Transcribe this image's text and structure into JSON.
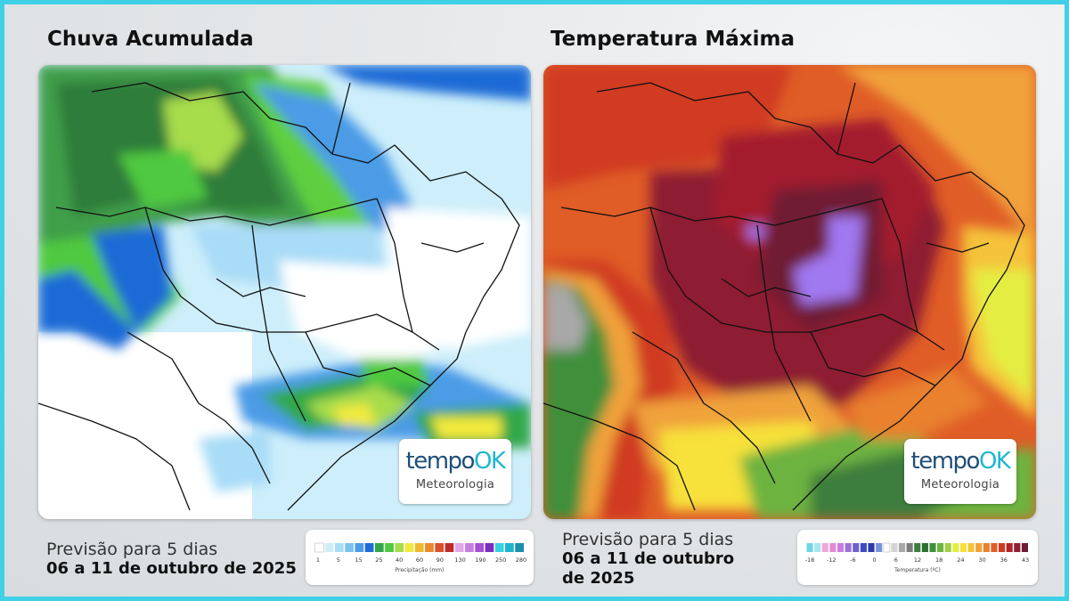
{
  "rain": {
    "title": "Chuva Acumulada",
    "legend_ticks": [
      "1",
      "5",
      "15",
      "25",
      "40",
      "60",
      "90",
      "130",
      "190",
      "250",
      "280"
    ],
    "legend_title": "Precipitação (mm)",
    "legend_colors": [
      "#ffffff",
      "#cfeefa",
      "#a9dcf7",
      "#7cc2ef",
      "#4c9be6",
      "#1f6bd6",
      "#30a84a",
      "#4fc93f",
      "#a7dc4b",
      "#f2ea3d",
      "#f0b82f",
      "#e98a2c",
      "#d95128",
      "#bf2b2c",
      "#e0a8e6",
      "#c77ee0",
      "#a54fd5",
      "#7a2cc4",
      "#38d2e2",
      "#1fb4cf",
      "#1a8fb0"
    ]
  },
  "temp": {
    "title": "Temperatura Máxima",
    "legend_ticks": [
      "-18",
      "-12",
      "-6",
      "0",
      "6",
      "12",
      "18",
      "24",
      "30",
      "36",
      "43"
    ],
    "legend_title": "Temperatura (ºC)",
    "legend_colors": [
      "#6fd6e8",
      "#a7e6f0",
      "#f0a7d9",
      "#e48ad1",
      "#c77ee0",
      "#9a73d8",
      "#6b62cf",
      "#3f4cc0",
      "#2d3aa8",
      "#7894d8",
      "#ffffff",
      "#d4d4d4",
      "#a8a8a8",
      "#7c7c7c",
      "#3e7d3e",
      "#2f6e31",
      "#3f8f3b",
      "#6db33f",
      "#a3cf47",
      "#e4ee42",
      "#f7e13a",
      "#f5c33a",
      "#f0a23a",
      "#e9812f",
      "#e05d27",
      "#d03a22",
      "#b3242a",
      "#8e1e33",
      "#6f1a33"
    ]
  },
  "logo": {
    "name_part1": "tempo",
    "name_part2": "OK",
    "subtitle": "Meteorologia"
  },
  "rain_forecast": {
    "line1": "Previsão para 5 dias",
    "line2": "06 a 11 de outubro de 2025"
  },
  "temp_forecast": {
    "line1": "Previsão para 5 dias",
    "line2a": "06 a 11 de outubro",
    "line2b": "de 2025"
  }
}
